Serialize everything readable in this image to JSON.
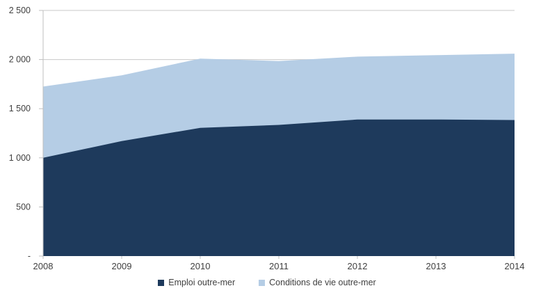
{
  "colors": {
    "background": "#FFFFFF",
    "axis": "#BFBFBF",
    "gridline": "#C9C9C9",
    "tick": "#BFBFBF",
    "label": "#404040",
    "series_dark": "#1E3A5C",
    "series_light": "#B5CDE5"
  },
  "chart_data": {
    "type": "area",
    "stacked": true,
    "title": "",
    "xlabel": "",
    "ylabel": "",
    "x": [
      "2008",
      "2009",
      "2010",
      "2011",
      "2012",
      "2013",
      "2014"
    ],
    "series": [
      {
        "name": "Emploi outre-mer",
        "color": "#1E3A5C",
        "values": [
          1000,
          1170,
          1305,
          1335,
          1390,
          1390,
          1385
        ]
      },
      {
        "name": "Conditions de vie outre-mer",
        "color": "#B5CDE5",
        "values": [
          725,
          670,
          705,
          650,
          640,
          655,
          675
        ]
      }
    ],
    "stacked_totals": [
      1725,
      1840,
      2010,
      1985,
      2030,
      2045,
      2060
    ],
    "ylim": [
      0,
      2500
    ],
    "yticks": [
      {
        "value": 0,
        "label": "-"
      },
      {
        "value": 500,
        "label": "500"
      },
      {
        "value": 1000,
        "label": "1 000"
      },
      {
        "value": 1500,
        "label": "1 500"
      },
      {
        "value": 2000,
        "label": "2 000"
      },
      {
        "value": 2500,
        "label": "2 500"
      }
    ],
    "grid": true,
    "legend_position": "bottom"
  }
}
